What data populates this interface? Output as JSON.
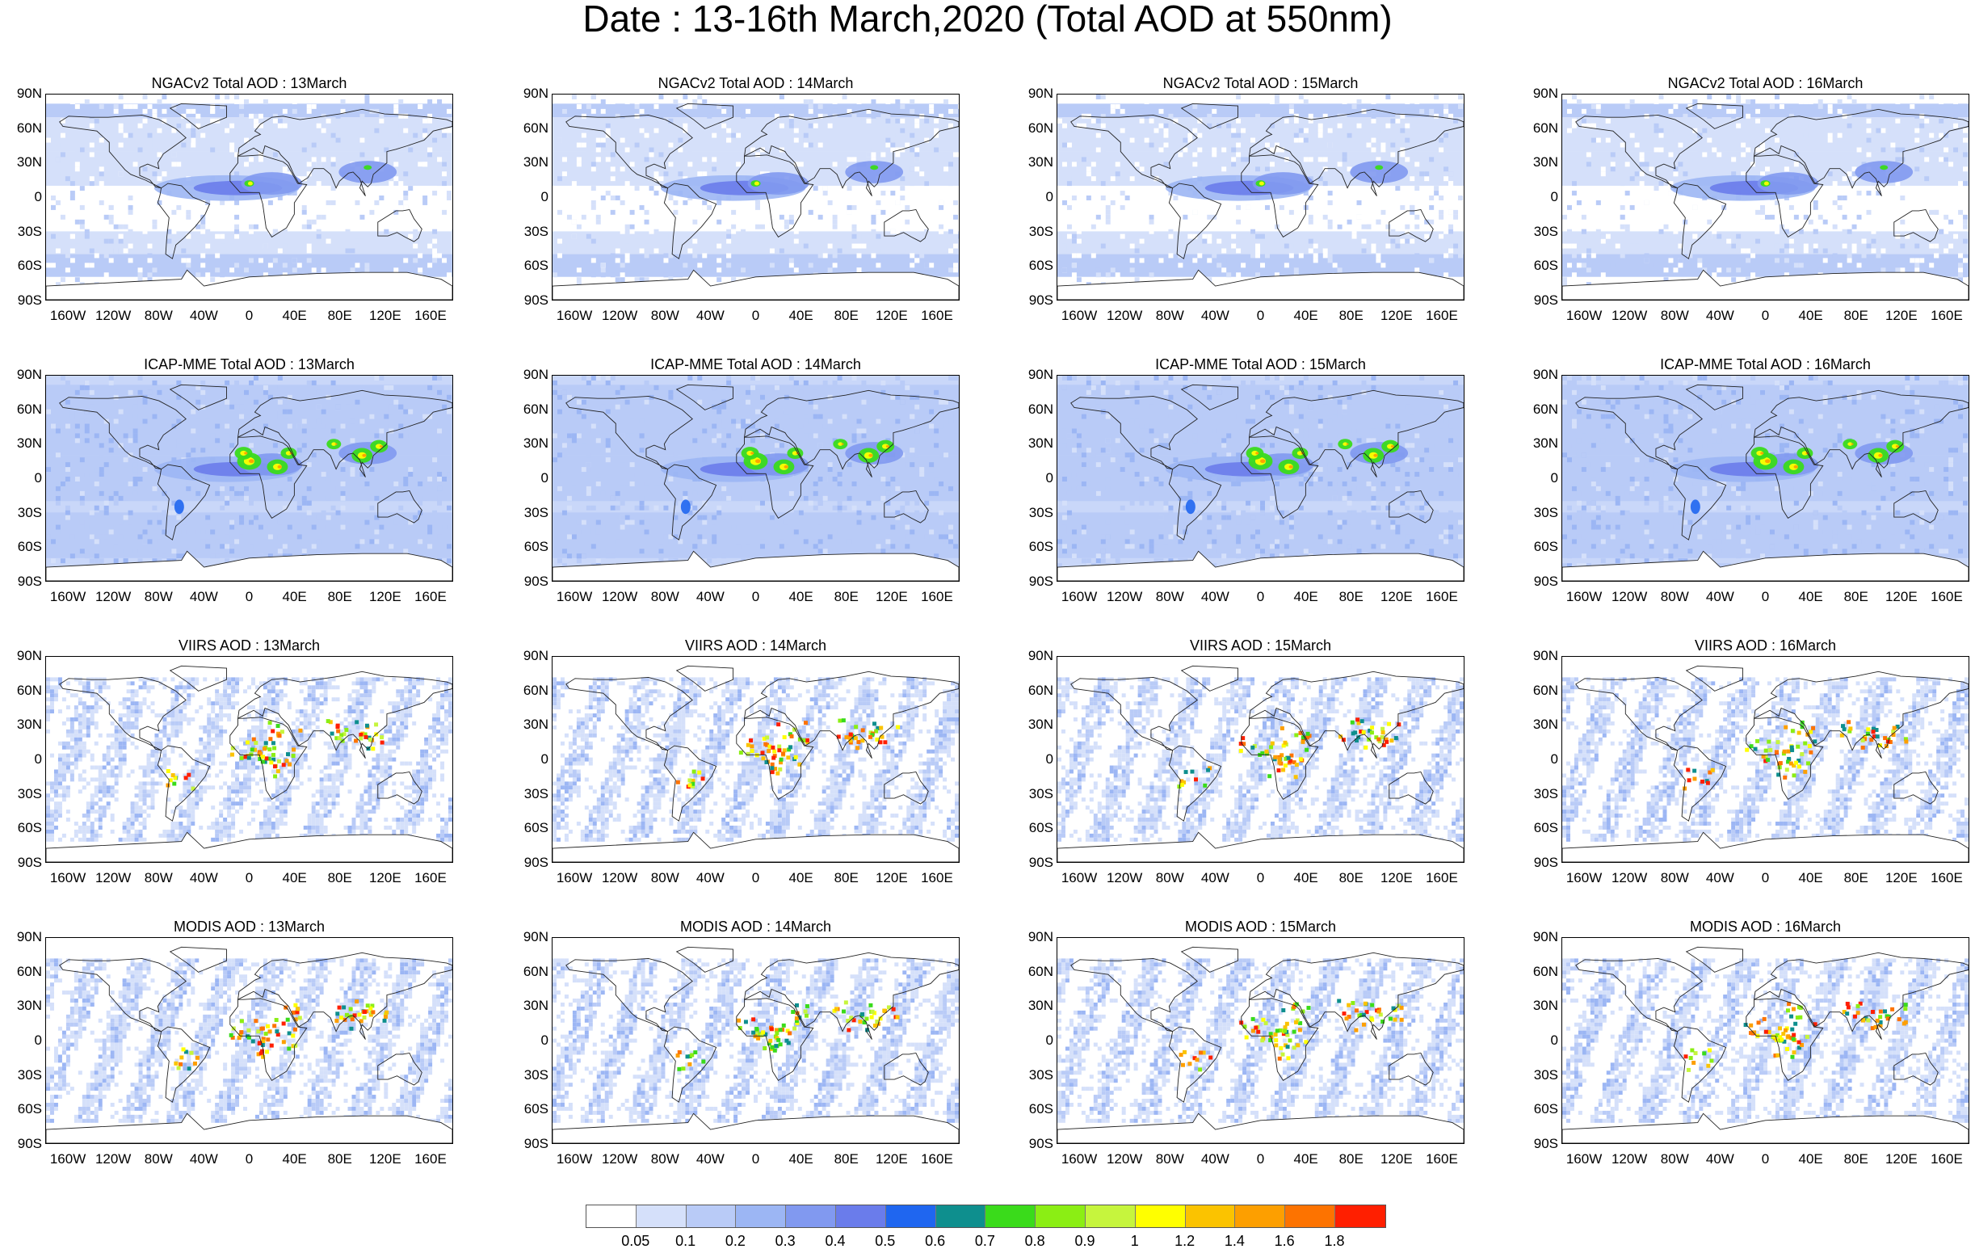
{
  "title": "Date : 13-16th March,2020 (Total AOD at 550nm)",
  "lat_labels": [
    "90N",
    "60N",
    "30N",
    "0",
    "30S",
    "60S",
    "90S"
  ],
  "lon_labels": [
    "160W",
    "120W",
    "80W",
    "40W",
    "0",
    "40E",
    "80E",
    "120E",
    "160E"
  ],
  "lon_values": [
    -160,
    -120,
    -80,
    -40,
    0,
    40,
    80,
    120,
    160
  ],
  "lat_values": [
    90,
    60,
    30,
    0,
    -30,
    -60,
    -90
  ],
  "rows": [
    {
      "source": "NGACv2",
      "kind": "model",
      "panels": [
        {
          "title": "NGACv2 Total AOD : 13March"
        },
        {
          "title": "NGACv2 Total AOD : 14March"
        },
        {
          "title": "NGACv2 Total AOD : 15March"
        },
        {
          "title": "NGACv2 Total AOD : 16March"
        }
      ]
    },
    {
      "source": "ICAP-MME",
      "kind": "ensemble",
      "panels": [
        {
          "title": "ICAP-MME Total AOD : 13March"
        },
        {
          "title": "ICAP-MME Total AOD : 14March"
        },
        {
          "title": "ICAP-MME Total AOD : 15March"
        },
        {
          "title": "ICAP-MME Total AOD : 16March"
        }
      ]
    },
    {
      "source": "VIIRS",
      "kind": "satellite",
      "panels": [
        {
          "title": "VIIRS AOD : 13March"
        },
        {
          "title": "VIIRS AOD : 14March"
        },
        {
          "title": "VIIRS AOD : 15March"
        },
        {
          "title": "VIIRS AOD : 16March"
        }
      ]
    },
    {
      "source": "MODIS",
      "kind": "satellite",
      "panels": [
        {
          "title": "MODIS AOD : 13March"
        },
        {
          "title": "MODIS AOD : 14March"
        },
        {
          "title": "MODIS AOD : 15March"
        },
        {
          "title": "MODIS AOD : 16March"
        }
      ]
    }
  ],
  "colorbar": {
    "labels": [
      "0.05",
      "0.1",
      "0.2",
      "0.3",
      "0.4",
      "0.5",
      "0.6",
      "0.7",
      "0.8",
      "0.9",
      "1",
      "1.2",
      "1.4",
      "1.6",
      "1.8"
    ],
    "colors": [
      "#ffffff",
      "#d5e0fa",
      "#b9cbf7",
      "#9cb6f4",
      "#8199f0",
      "#6a7ceb",
      "#1f66f0",
      "#0e8f8e",
      "#3adb1b",
      "#8bee14",
      "#c6f53d",
      "#ffff00",
      "#fbc300",
      "#fd9f00",
      "#fd7300",
      "#ff1f00"
    ]
  }
}
